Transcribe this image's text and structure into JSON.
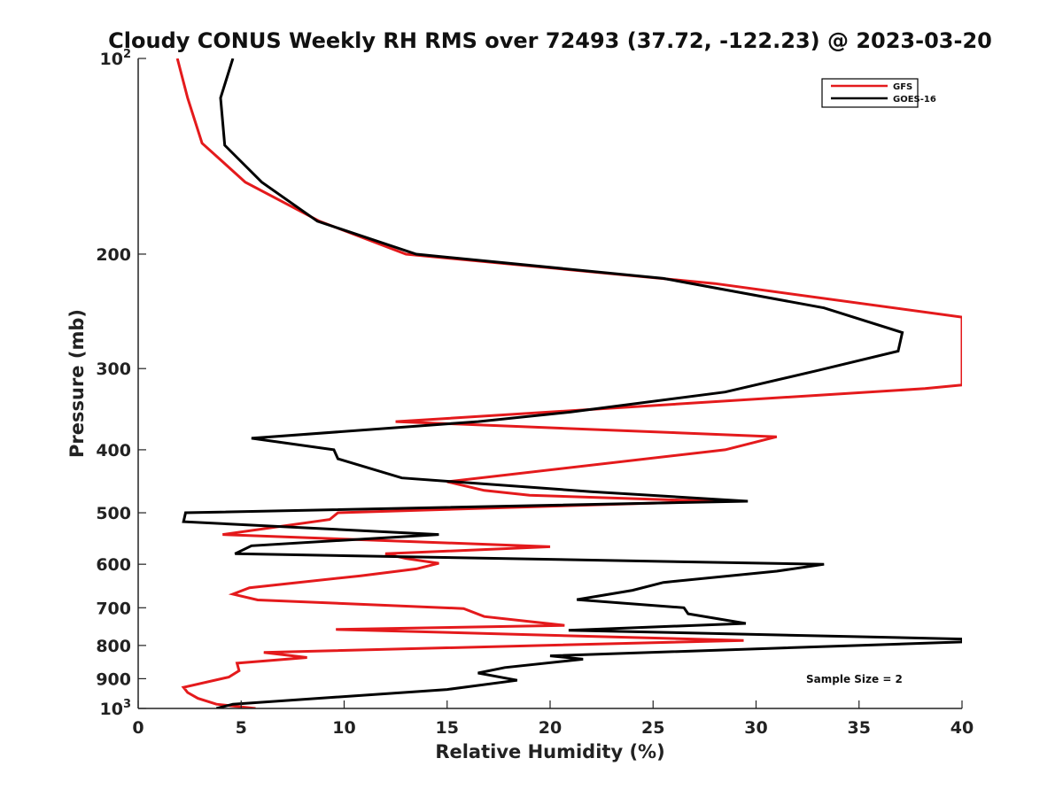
{
  "chart_data": {
    "type": "line",
    "title": "Cloudy CONUS Weekly RH RMS over 72493 (37.72, -122.23) @ 2023-03-20",
    "xlabel": "Relative Humidity (%)",
    "ylabel": "Pressure (mb)",
    "xlim": [
      0,
      40
    ],
    "ylim": [
      1000,
      100
    ],
    "y_scale": "log",
    "y_reversed": true,
    "grid": false,
    "legend_position": "top-right",
    "x_ticks": [
      0,
      5,
      10,
      15,
      20,
      25,
      30,
      35,
      40
    ],
    "y_ticks": [
      {
        "value": 100,
        "base": "10",
        "exp": "2"
      },
      {
        "value": 200,
        "label": "200"
      },
      {
        "value": 300,
        "label": "300"
      },
      {
        "value": 400,
        "label": "400"
      },
      {
        "value": 500,
        "label": "500"
      },
      {
        "value": 600,
        "label": "600"
      },
      {
        "value": 700,
        "label": "700"
      },
      {
        "value": 800,
        "label": "800"
      },
      {
        "value": 900,
        "label": "900"
      },
      {
        "value": 1000,
        "base": "10",
        "exp": "3"
      }
    ],
    "series": [
      {
        "name": "GFS",
        "color": "#e41a1c",
        "points": [
          [
            1.9,
            100
          ],
          [
            2.4,
            115
          ],
          [
            3.1,
            135
          ],
          [
            5.2,
            155
          ],
          [
            8.8,
            178
          ],
          [
            13.0,
            200
          ],
          [
            28.0,
            222
          ],
          [
            40.0,
            250
          ],
          [
            40.0,
            318
          ],
          [
            38.2,
            322
          ],
          [
            12.5,
            362
          ],
          [
            31.0,
            382
          ],
          [
            28.5,
            400
          ],
          [
            15.0,
            448
          ],
          [
            16.8,
            462
          ],
          [
            19.0,
            470
          ],
          [
            28.0,
            480
          ],
          [
            9.7,
            500
          ],
          [
            9.3,
            512
          ],
          [
            4.1,
            540
          ],
          [
            20.0,
            564
          ],
          [
            12.0,
            578
          ],
          [
            13.0,
            588
          ],
          [
            14.6,
            598
          ],
          [
            13.5,
            610
          ],
          [
            10.8,
            625
          ],
          [
            5.4,
            652
          ],
          [
            4.6,
            667
          ],
          [
            5.8,
            681
          ],
          [
            15.8,
            702
          ],
          [
            16.8,
            722
          ],
          [
            20.7,
            745
          ],
          [
            9.6,
            756
          ],
          [
            29.4,
            786
          ],
          [
            6.1,
            820
          ],
          [
            8.2,
            835
          ],
          [
            4.8,
            852
          ],
          [
            4.9,
            875
          ],
          [
            4.4,
            895
          ],
          [
            2.2,
            928
          ],
          [
            2.4,
            945
          ],
          [
            2.9,
            965
          ],
          [
            3.8,
            985
          ],
          [
            5.7,
            1000
          ]
        ]
      },
      {
        "name": "GOES-16",
        "color": "#000000",
        "points": [
          [
            4.6,
            100
          ],
          [
            4.0,
            115
          ],
          [
            4.2,
            136
          ],
          [
            6.0,
            155
          ],
          [
            8.7,
            178
          ],
          [
            13.5,
            200
          ],
          [
            25.5,
            218
          ],
          [
            33.3,
            242
          ],
          [
            37.1,
            264
          ],
          [
            36.9,
            282
          ],
          [
            33.0,
            302
          ],
          [
            28.5,
            326
          ],
          [
            21.0,
            350
          ],
          [
            16.5,
            362
          ],
          [
            5.5,
            384
          ],
          [
            9.5,
            400
          ],
          [
            9.7,
            413
          ],
          [
            12.8,
            442
          ],
          [
            22.0,
            464
          ],
          [
            29.6,
            480
          ],
          [
            2.3,
            500
          ],
          [
            2.2,
            516
          ],
          [
            14.6,
            540
          ],
          [
            5.5,
            562
          ],
          [
            4.7,
            578
          ],
          [
            33.3,
            600
          ],
          [
            31.0,
            615
          ],
          [
            25.5,
            640
          ],
          [
            24.0,
            658
          ],
          [
            21.3,
            680
          ],
          [
            26.5,
            700
          ],
          [
            26.7,
            715
          ],
          [
            29.5,
            740
          ],
          [
            20.9,
            758
          ],
          [
            40.0,
            782
          ],
          [
            40.0,
            790
          ],
          [
            20.0,
            830
          ],
          [
            21.6,
            840
          ],
          [
            17.8,
            865
          ],
          [
            16.5,
            882
          ],
          [
            18.4,
            905
          ],
          [
            15.0,
            935
          ],
          [
            4.6,
            985
          ],
          [
            3.8,
            1000
          ]
        ]
      }
    ],
    "annotations": [
      {
        "text": "Sample Size = 2",
        "x": 38.0,
        "y": 900
      }
    ]
  }
}
